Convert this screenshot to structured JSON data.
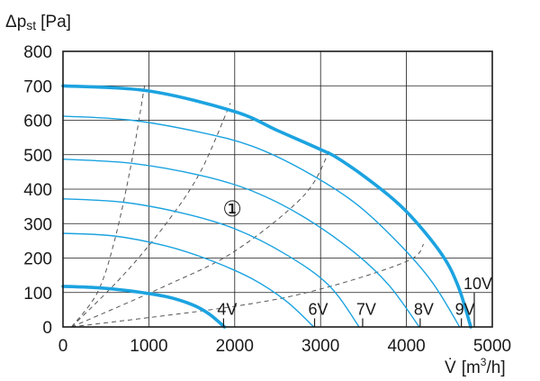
{
  "chart_data": {
    "type": "line",
    "ylabel_main": "Δp",
    "ylabel_sub": "st",
    "ylabel_unit": "[Pa]",
    "xlabel_main": "V̇",
    "xlabel_unit_open": "[m",
    "xlabel_unit_exp": "3",
    "xlabel_unit_close": "/h]",
    "xlim": [
      0,
      5000
    ],
    "ylim": [
      0,
      800
    ],
    "x_ticks": [
      "0",
      "1000",
      "2000",
      "3000",
      "4000",
      "5000"
    ],
    "y_ticks": [
      "0",
      "100",
      "200",
      "300",
      "400",
      "500",
      "600",
      "700",
      "800"
    ],
    "grid": true,
    "region_marker": "①",
    "colors": {
      "curve": "#1ca3e0",
      "grid": "#1a1a1a",
      "dashed": "#555555"
    },
    "series": [
      {
        "name": "10V",
        "bold": true,
        "points": [
          [
            0,
            700
          ],
          [
            1000,
            685
          ],
          [
            2000,
            625
          ],
          [
            2500,
            570
          ],
          [
            3000,
            515
          ],
          [
            3200,
            490
          ],
          [
            3600,
            420
          ],
          [
            4000,
            335
          ],
          [
            4400,
            215
          ],
          [
            4600,
            120
          ],
          [
            4750,
            0
          ]
        ]
      },
      {
        "name": "9V",
        "bold": false,
        "points": [
          [
            0,
            612
          ],
          [
            800,
            600
          ],
          [
            1600,
            565
          ],
          [
            2200,
            525
          ],
          [
            2800,
            455
          ],
          [
            3400,
            360
          ],
          [
            3900,
            245
          ],
          [
            4300,
            130
          ],
          [
            4620,
            0
          ]
        ]
      },
      {
        "name": "8V",
        "bold": false,
        "points": [
          [
            0,
            487
          ],
          [
            800,
            475
          ],
          [
            1600,
            440
          ],
          [
            2200,
            395
          ],
          [
            2800,
            320
          ],
          [
            3400,
            215
          ],
          [
            3800,
            120
          ],
          [
            4150,
            0
          ]
        ]
      },
      {
        "name": "7V",
        "bold": false,
        "points": [
          [
            0,
            372
          ],
          [
            700,
            362
          ],
          [
            1400,
            330
          ],
          [
            2000,
            285
          ],
          [
            2600,
            210
          ],
          [
            3100,
            120
          ],
          [
            3450,
            0
          ]
        ]
      },
      {
        "name": "6V",
        "bold": false,
        "points": [
          [
            0,
            272
          ],
          [
            600,
            264
          ],
          [
            1200,
            235
          ],
          [
            1700,
            195
          ],
          [
            2200,
            140
          ],
          [
            2600,
            75
          ],
          [
            2920,
            0
          ]
        ]
      },
      {
        "name": "4V",
        "bold": true,
        "points": [
          [
            0,
            118
          ],
          [
            400,
            114
          ],
          [
            800,
            104
          ],
          [
            1200,
            88
          ],
          [
            1500,
            65
          ],
          [
            1700,
            38
          ],
          [
            1880,
            0
          ]
        ]
      }
    ],
    "system_curves": [
      [
        [
          100,
          0
        ],
        [
          400,
          100
        ],
        [
          600,
          250
        ],
        [
          800,
          480
        ],
        [
          950,
          700
        ]
      ],
      [
        [
          100,
          0
        ],
        [
          700,
          150
        ],
        [
          1200,
          300
        ],
        [
          1600,
          450
        ],
        [
          1950,
          650
        ]
      ],
      [
        [
          100,
          0
        ],
        [
          1200,
          120
        ],
        [
          2000,
          220
        ],
        [
          2800,
          380
        ],
        [
          3100,
          510
        ]
      ],
      [
        [
          100,
          0
        ],
        [
          2000,
          60
        ],
        [
          3000,
          110
        ],
        [
          4000,
          190
        ],
        [
          4200,
          240
        ]
      ]
    ],
    "voltage_labels": [
      {
        "text": "4V",
        "x": 1870
      },
      {
        "text": "6V",
        "x": 2930
      },
      {
        "text": "7V",
        "x": 3490
      },
      {
        "text": "8V",
        "x": 4160
      },
      {
        "text": "9V",
        "x": 4640
      },
      {
        "text": "10V",
        "x": 4790
      }
    ]
  }
}
